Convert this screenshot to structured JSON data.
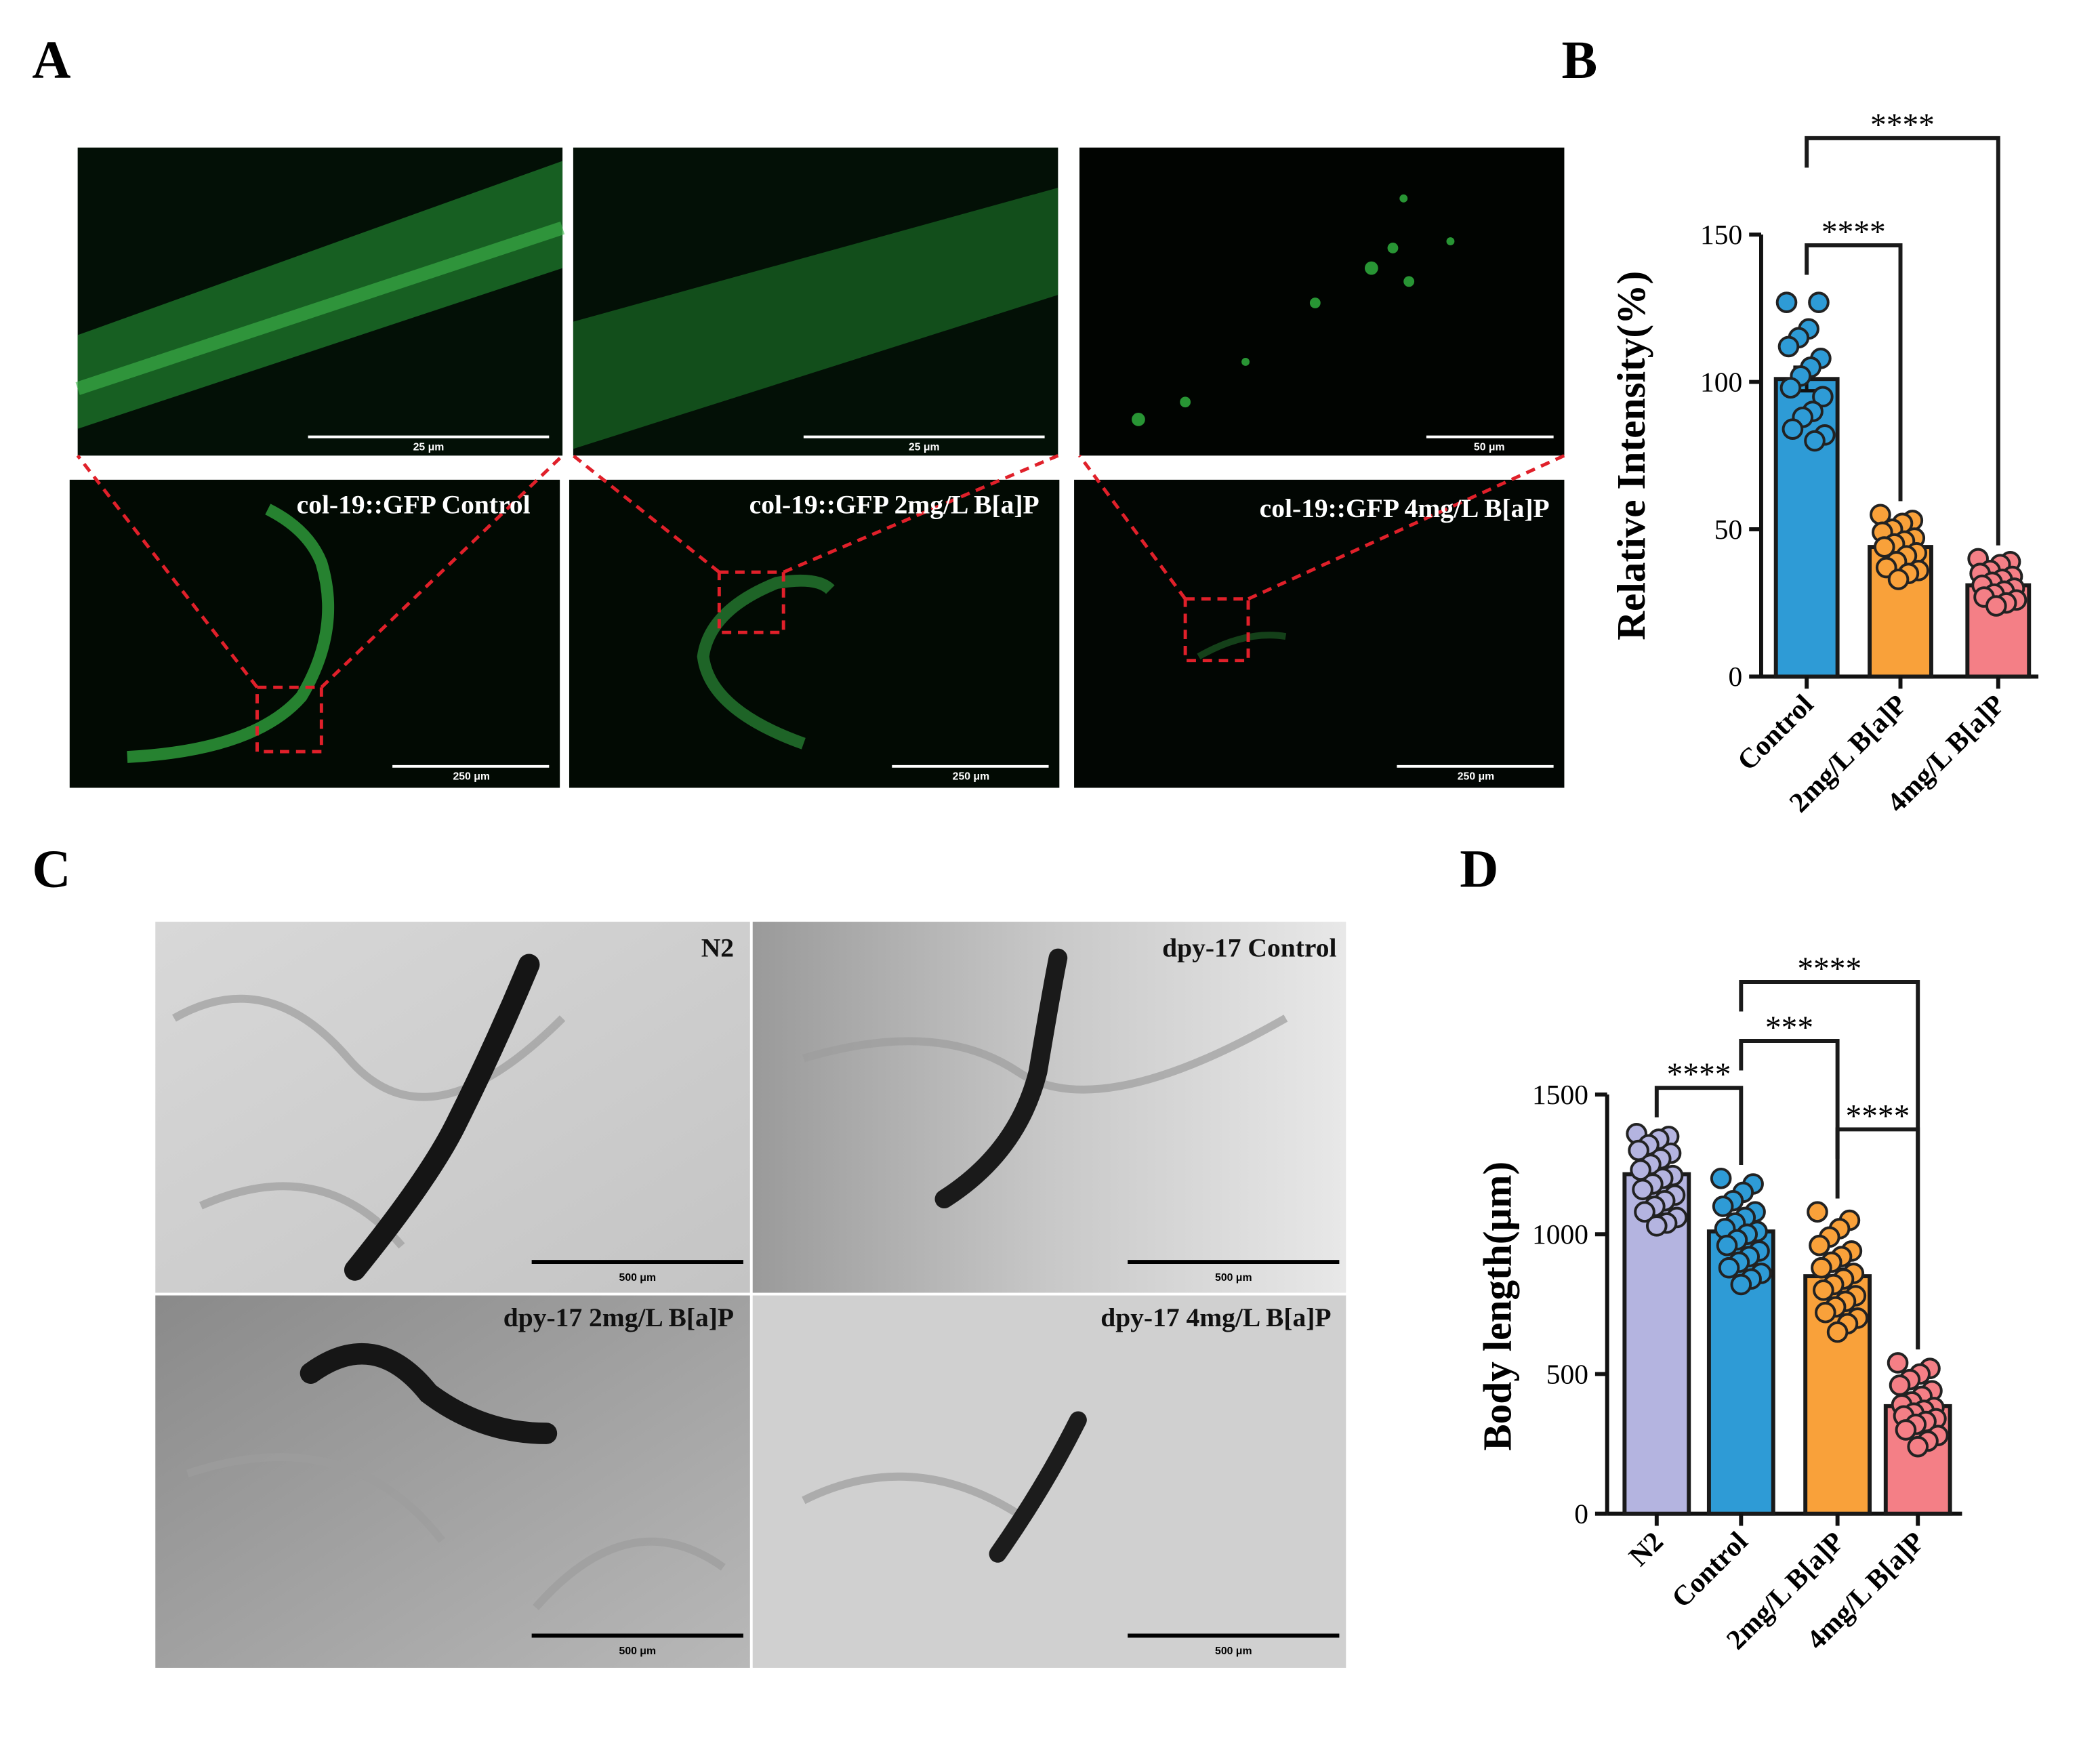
{
  "figure": {
    "panel_labels": [
      "A",
      "B",
      "C",
      "D"
    ],
    "panel_a": {
      "captions": [
        "col-19::GFP Control",
        "col-19::GFP 2mg/L B[a]P",
        "col-19::GFP 4mg/L B[a]P"
      ],
      "zoom_scale_bars": [
        "25 μm",
        "25 μm",
        "50 μm"
      ],
      "scale_bars": [
        "250 μm",
        "250 μm",
        "250 μm"
      ]
    },
    "panel_c": {
      "captions": [
        "N2",
        "dpy-17 Control",
        "dpy-17 2mg/L B[a]P",
        "dpy-17 4mg/L B[a]P"
      ],
      "scale_bars": [
        "500 μm",
        "500 μm",
        "500 μm",
        "500 μm"
      ]
    }
  },
  "chart_data": [
    {
      "type": "bar",
      "ylabel": "Relative Intensity(%)",
      "categories": [
        "Control",
        "2mg/L B[a]P",
        "4mg/L B[a]P"
      ],
      "values": [
        101,
        44,
        31
      ],
      "errors": [
        4,
        2,
        1.5
      ],
      "colors": [
        "#2e9bd6",
        "#f9a13a",
        "#f47f86"
      ],
      "points": [
        [
          127,
          127,
          118,
          115,
          112,
          108,
          105,
          102,
          98,
          95,
          90,
          88,
          84,
          82,
          80
        ],
        [
          55,
          53,
          52,
          50,
          49,
          47,
          46,
          45,
          44,
          42,
          41,
          39,
          37,
          36,
          35,
          33
        ],
        [
          40,
          39,
          38,
          36,
          35,
          34,
          33,
          32,
          31,
          30,
          29,
          28,
          27,
          26,
          25,
          24
        ]
      ],
      "ylim": [
        0,
        150
      ],
      "yticks": [
        0,
        50,
        100,
        150
      ],
      "comparisons": [
        {
          "from": 0,
          "to": 1,
          "label": "****"
        },
        {
          "from": 0,
          "to": 2,
          "label": "****"
        }
      ]
    },
    {
      "type": "bar",
      "ylabel": "Body length(μm)",
      "categories": [
        "N2",
        "Control",
        "2mg/L B[a]P",
        "4mg/L B[a]P"
      ],
      "values": [
        1215,
        1010,
        850,
        385
      ],
      "errors": [
        25,
        20,
        25,
        18
      ],
      "colors": [
        "#b4b4e0",
        "#2e9bd6",
        "#f9a13a",
        "#f47f86"
      ],
      "points": [
        [
          1360,
          1350,
          1340,
          1320,
          1300,
          1290,
          1270,
          1250,
          1230,
          1210,
          1200,
          1180,
          1160,
          1140,
          1120,
          1100,
          1080,
          1060,
          1040,
          1030
        ],
        [
          1200,
          1180,
          1150,
          1120,
          1100,
          1080,
          1060,
          1040,
          1020,
          1010,
          1000,
          980,
          960,
          940,
          920,
          900,
          880,
          860,
          840,
          820
        ],
        [
          1080,
          1050,
          1020,
          990,
          960,
          940,
          920,
          900,
          880,
          860,
          840,
          820,
          800,
          780,
          760,
          740,
          720,
          700,
          680,
          650
        ],
        [
          540,
          520,
          500,
          480,
          460,
          440,
          420,
          400,
          390,
          380,
          370,
          360,
          350,
          340,
          330,
          320,
          300,
          280,
          260,
          240
        ]
      ],
      "ylim": [
        0,
        1500
      ],
      "yticks": [
        0,
        500,
        1000,
        1500
      ],
      "comparisons": [
        {
          "from": 1,
          "to": 2,
          "label": "***"
        },
        {
          "from": 0,
          "to": 1,
          "label": "****"
        },
        {
          "from": 1,
          "to": 3,
          "label": "****"
        },
        {
          "from": 2,
          "to": 3,
          "label": "****"
        }
      ]
    }
  ]
}
